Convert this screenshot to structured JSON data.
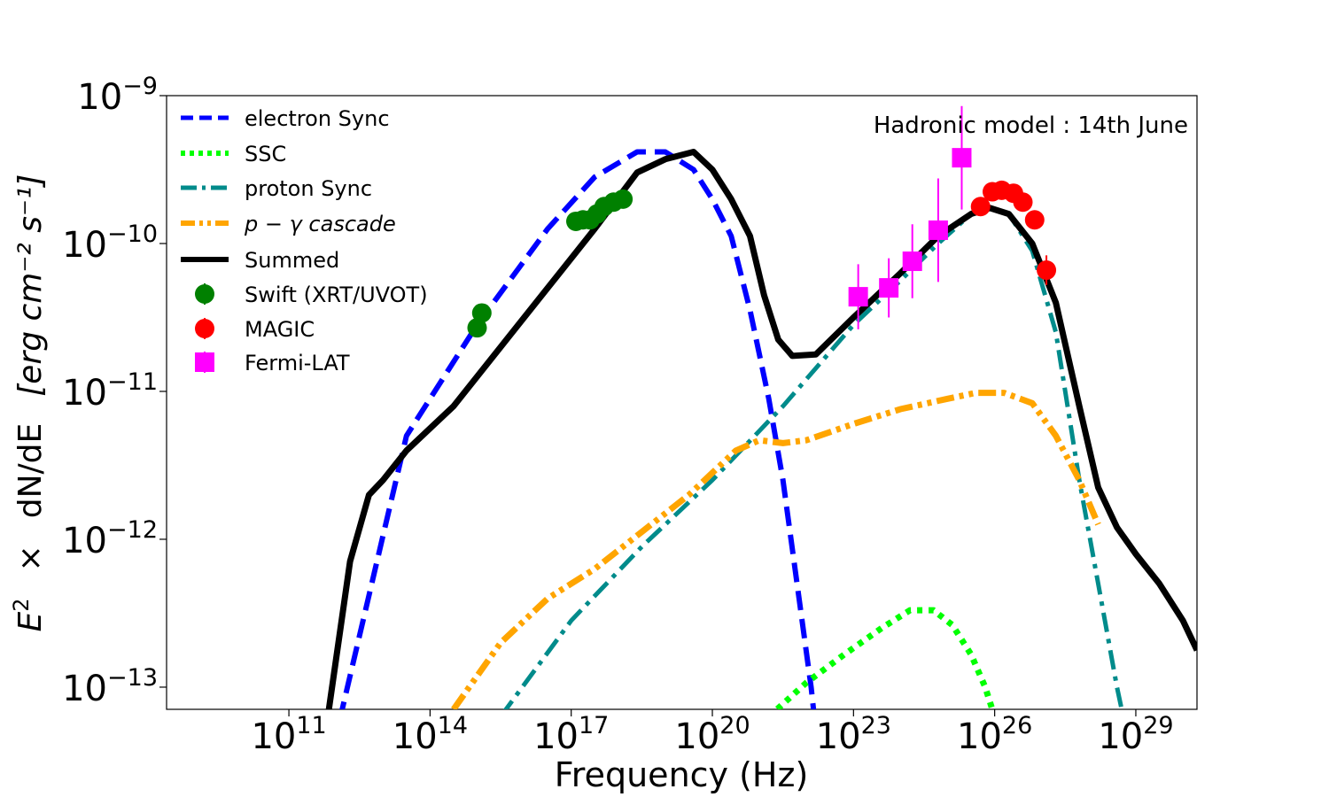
{
  "chart_data": {
    "type": "line",
    "title": "",
    "annotation": "Hadronic model : 14th June",
    "xlabel": "Frequency (Hz)",
    "ylabel": {
      "e_symbol": "E",
      "e_power": "2",
      "times": "×",
      "dnde": "dN/dE",
      "units": "[erg cm⁻² s⁻¹]"
    },
    "xscale": "log",
    "yscale": "log",
    "xlim_log10": [
      8.4,
      30.3
    ],
    "ylim_log10": [
      -13.15,
      -9.0
    ],
    "x_ticks": [
      {
        "base": "10",
        "exp": "11",
        "log": 11
      },
      {
        "base": "10",
        "exp": "14",
        "log": 14
      },
      {
        "base": "10",
        "exp": "17",
        "log": 17
      },
      {
        "base": "10",
        "exp": "20",
        "log": 20
      },
      {
        "base": "10",
        "exp": "23",
        "log": 23
      },
      {
        "base": "10",
        "exp": "26",
        "log": 26
      },
      {
        "base": "10",
        "exp": "29",
        "log": 29
      }
    ],
    "y_ticks": [
      {
        "base": "10",
        "exp": "−9",
        "log": -9
      },
      {
        "base": "10",
        "exp": "−10",
        "log": -10
      },
      {
        "base": "10",
        "exp": "−11",
        "log": -11
      },
      {
        "base": "10",
        "exp": "−12",
        "log": -12
      },
      {
        "base": "10",
        "exp": "−13",
        "log": -13
      }
    ],
    "legend_position": "upper-left",
    "series": [
      {
        "name": "electron Sync",
        "color": "#0000ff",
        "style": "dashed",
        "x_log10": [
          11.8,
          13.5,
          15.0,
          16.5,
          17.5,
          18.4,
          19.0,
          19.6,
          20.0,
          20.4,
          20.8,
          21.2,
          21.5,
          21.8,
          22.1,
          22.3
        ],
        "y_log10": [
          -13.6,
          -11.3,
          -10.55,
          -9.9,
          -9.55,
          -9.38,
          -9.38,
          -9.5,
          -9.7,
          -9.95,
          -10.45,
          -11.05,
          -11.6,
          -12.3,
          -13.0,
          -13.6
        ]
      },
      {
        "name": "SSC",
        "color": "#00ff00",
        "style": "dotted",
        "x_log10": [
          21.2,
          22.0,
          22.8,
          23.6,
          24.2,
          24.7,
          25.1,
          25.5,
          25.8,
          26.0
        ],
        "y_log10": [
          -13.2,
          -12.97,
          -12.78,
          -12.6,
          -12.48,
          -12.48,
          -12.58,
          -12.78,
          -13.0,
          -13.2
        ]
      },
      {
        "name": "proton Sync",
        "color": "#008b8b",
        "style": "dashdot",
        "x_log10": [
          15.5,
          17.0,
          18.5,
          20.0,
          21.5,
          23.0,
          24.0,
          24.8,
          25.5,
          25.9,
          26.3,
          26.8,
          27.3,
          27.8,
          28.2,
          28.6,
          28.8
        ],
        "y_log10": [
          -13.2,
          -12.55,
          -12.05,
          -11.6,
          -11.1,
          -10.55,
          -10.25,
          -10.0,
          -9.8,
          -9.76,
          -9.8,
          -10.05,
          -10.6,
          -11.6,
          -12.3,
          -13.0,
          -13.3
        ]
      },
      {
        "name": "p − γ cascade",
        "color": "#ffa500",
        "style": "dashdotdot",
        "x_log10": [
          14.5,
          15.5,
          16.5,
          17.5,
          18.5,
          19.5,
          20.5,
          21.0,
          21.5,
          22.0,
          23.0,
          24.0,
          25.0,
          25.6,
          26.2,
          26.8,
          27.3,
          27.8,
          28.2
        ],
        "y_log10": [
          -13.15,
          -12.7,
          -12.4,
          -12.2,
          -11.95,
          -11.7,
          -11.4,
          -11.33,
          -11.35,
          -11.33,
          -11.22,
          -11.12,
          -11.05,
          -11.01,
          -11.01,
          -11.08,
          -11.3,
          -11.6,
          -11.9
        ]
      },
      {
        "name": "Summed",
        "color": "#000000",
        "style": "solid",
        "x_log10": [
          11.85,
          12.3,
          12.7,
          13.0,
          13.5,
          14.5,
          15.5,
          16.5,
          17.5,
          18.4,
          19.0,
          19.6,
          20.0,
          20.4,
          20.8,
          21.1,
          21.4,
          21.7,
          22.2,
          23.0,
          24.0,
          24.8,
          25.5,
          25.9,
          26.3,
          26.8,
          27.3,
          27.8,
          28.2,
          28.6,
          29.0,
          29.5,
          30.0,
          30.3
        ],
        "y_log10": [
          -13.15,
          -12.15,
          -11.7,
          -11.6,
          -11.4,
          -11.1,
          -10.7,
          -10.3,
          -9.9,
          -9.52,
          -9.43,
          -9.38,
          -9.5,
          -9.7,
          -9.95,
          -10.35,
          -10.65,
          -10.76,
          -10.75,
          -10.5,
          -10.2,
          -9.95,
          -9.8,
          -9.76,
          -9.8,
          -10.0,
          -10.4,
          -11.1,
          -11.65,
          -11.92,
          -12.1,
          -12.3,
          -12.55,
          -12.75
        ]
      }
    ],
    "data_points": [
      {
        "name": "Swift (XRT/UVOT)",
        "color": "#008000",
        "marker": "circle",
        "points": [
          [
            15.0,
            -10.57
          ],
          [
            15.1,
            -10.47
          ],
          [
            17.1,
            -9.85
          ],
          [
            17.25,
            -9.84
          ],
          [
            17.4,
            -9.84
          ],
          [
            17.55,
            -9.8
          ],
          [
            17.7,
            -9.75
          ],
          [
            17.9,
            -9.72
          ],
          [
            18.1,
            -9.7
          ]
        ]
      },
      {
        "name": "MAGIC",
        "color": "#ff0000",
        "marker": "circle",
        "points": [
          [
            25.7,
            -9.75,
            0.02
          ],
          [
            25.95,
            -9.65,
            0.02
          ],
          [
            26.15,
            -9.64,
            0.02
          ],
          [
            26.4,
            -9.66,
            0.02
          ],
          [
            26.6,
            -9.72,
            0.02
          ],
          [
            26.85,
            -9.84,
            0.03
          ],
          [
            27.1,
            -10.18,
            0.1
          ]
        ]
      },
      {
        "name": "Fermi-LAT",
        "color": "#ff00ff",
        "marker": "square",
        "points": [
          [
            23.1,
            -10.36,
            0.22
          ],
          [
            23.75,
            -10.3,
            0.2
          ],
          [
            24.25,
            -10.12,
            0.25
          ],
          [
            24.8,
            -9.91,
            0.35
          ],
          [
            25.3,
            -9.42,
            0.35
          ]
        ]
      }
    ]
  }
}
